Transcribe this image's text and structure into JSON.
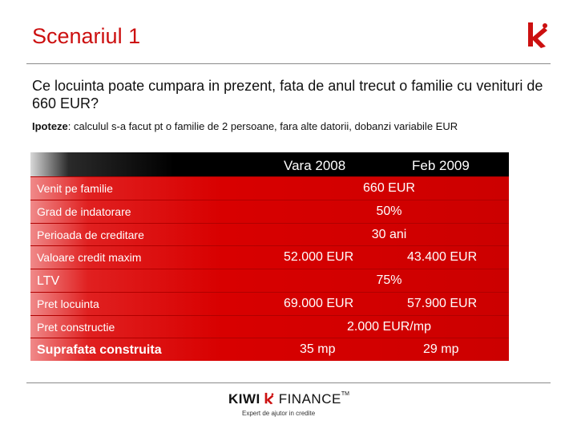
{
  "slide": {
    "title": "Scenariul 1",
    "question": "Ce locuinta poate cumpara in prezent, fata de anul trecut o familie cu venituri de 660 EUR?",
    "hypothesis_label": "Ipoteze",
    "hypothesis_text": ": calculul s-a facut pt o familie de 2 persoane, fara alte datorii, dobanzi variabile EUR"
  },
  "table": {
    "col1": "Vara 2008",
    "col2": "Feb 2009",
    "rows": [
      {
        "label": "Venit pe familie",
        "shared": "660 EUR"
      },
      {
        "label": "Grad de indatorare",
        "shared": "50%"
      },
      {
        "label": "Perioada de creditare",
        "shared": "30 ani"
      },
      {
        "label": "Valoare credit maxim",
        "v1": "52.000 EUR",
        "v2": "43.400 EUR"
      },
      {
        "label": "LTV",
        "shared": "75%"
      },
      {
        "label": "Pret locuinta",
        "v1": "69.000 EUR",
        "v2": "57.900 EUR"
      },
      {
        "label": "Pret constructie",
        "shared": "2.000 EUR/mp"
      },
      {
        "label": "Suprafata construita",
        "v1": "35 mp",
        "v2": "29 mp"
      }
    ]
  },
  "footer": {
    "brand_kiwi": "KIWI",
    "brand_finance": "FINANCE",
    "tm": "TM",
    "tagline": "Expert de ajutor in credite"
  },
  "colors": {
    "accent": "#cc1010",
    "row_red": "#d80000",
    "header_black": "#000000"
  }
}
